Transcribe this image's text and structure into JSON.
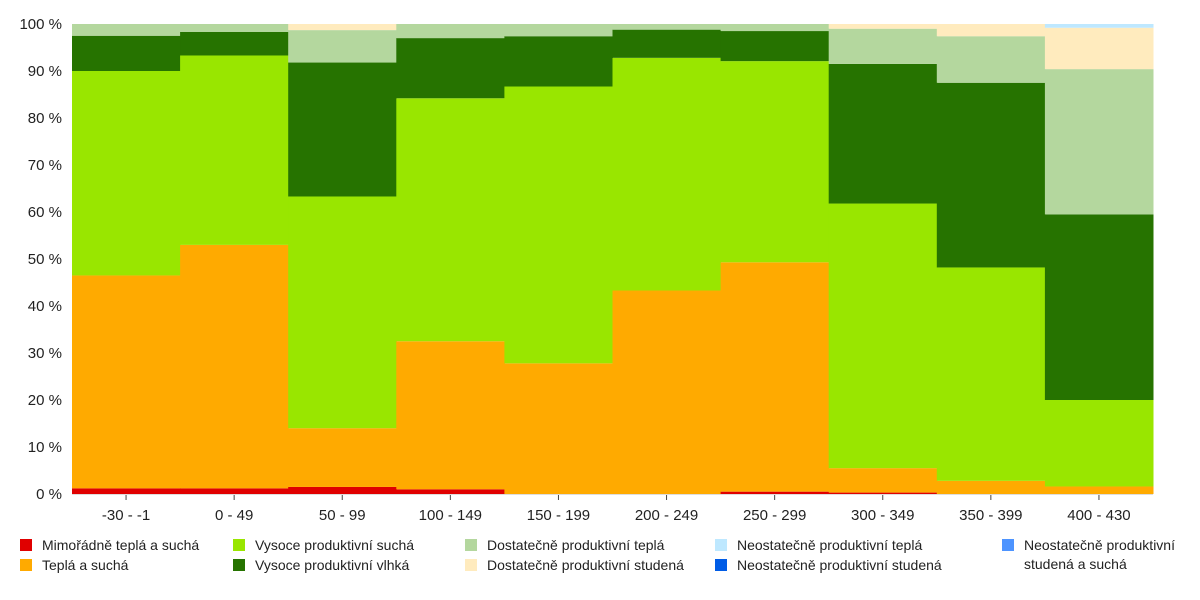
{
  "chart_data": {
    "type": "bar",
    "stacked": true,
    "normalized": true,
    "title": "",
    "xlabel": "",
    "ylabel": "",
    "ylim": [
      0,
      100
    ],
    "y_ticks": [
      "0 %",
      "10 %",
      "20 %",
      "30 %",
      "40 %",
      "50 %",
      "60 %",
      "70 %",
      "80 %",
      "90 %",
      "100 %"
    ],
    "grid": false,
    "legend_position": "bottom",
    "categories": [
      "-30 - -1",
      "0 - 49",
      "50 - 99",
      "100 - 149",
      "150 - 199",
      "200 - 249",
      "250 - 299",
      "300 - 349",
      "350 - 399",
      "400 - 430"
    ],
    "series": [
      {
        "name": "Mimořádně teplá a suchá",
        "color": "#e00000",
        "values": [
          1.2,
          1.2,
          1.5,
          1.0,
          0.0,
          0.0,
          0.5,
          0.3,
          0.0,
          0.0
        ]
      },
      {
        "name": "Teplá a suchá",
        "color": "#ffaa00",
        "values": [
          45.3,
          51.8,
          12.5,
          31.5,
          27.8,
          43.3,
          48.8,
          5.2,
          2.8,
          1.6
        ]
      },
      {
        "name": "Vysoce produktivní suchá",
        "color": "#99e600",
        "values": [
          43.5,
          40.3,
          49.3,
          51.7,
          58.9,
          49.5,
          42.8,
          56.3,
          45.4,
          18.4
        ]
      },
      {
        "name": "Vysoce produktivní vlhká",
        "color": "#267300",
        "values": [
          7.5,
          5.0,
          28.5,
          12.8,
          10.7,
          6.0,
          6.4,
          29.7,
          39.3,
          39.5
        ]
      },
      {
        "name": "Dostatečně produktivní teplá",
        "color": "#b4d79e",
        "values": [
          2.5,
          1.7,
          6.9,
          3.0,
          2.6,
          1.2,
          1.5,
          7.5,
          9.9,
          30.9
        ]
      },
      {
        "name": "Dostatečně produktivní studená",
        "color": "#ffebbe",
        "values": [
          0.0,
          0.0,
          1.3,
          0.0,
          0.0,
          0.0,
          0.0,
          1.0,
          2.6,
          8.8
        ]
      },
      {
        "name": "Neostatečně produktivní teplá",
        "color": "#bee8ff",
        "values": [
          0.0,
          0.0,
          0.0,
          0.0,
          0.0,
          0.0,
          0.0,
          0.0,
          0.0,
          0.8
        ]
      },
      {
        "name": "Neostatečně produktivní studená",
        "color": "#005ce6",
        "values": [
          0.0,
          0.0,
          0.0,
          0.0,
          0.0,
          0.0,
          0.0,
          0.0,
          0.0,
          0.0
        ]
      },
      {
        "name": "Neostatečně produktivní studená a suchá",
        "color": "#4d94ff",
        "values": [
          0.0,
          0.0,
          0.0,
          0.0,
          0.0,
          0.0,
          0.0,
          0.0,
          0.0,
          0.0
        ]
      }
    ]
  },
  "legend": {
    "items": [
      {
        "label": "Mimořádně teplá a suchá",
        "color": "#e00000"
      },
      {
        "label": "Teplá a suchá",
        "color": "#ffaa00"
      },
      {
        "label": "Vysoce produktivní suchá",
        "color": "#99e600"
      },
      {
        "label": "Vysoce produktivní vlhká",
        "color": "#267300"
      },
      {
        "label": "Dostatečně produktivní teplá",
        "color": "#b4d79e"
      },
      {
        "label": "Dostatečně produktivní studená",
        "color": "#ffebbe"
      },
      {
        "label": "Neostatečně produktivní teplá",
        "color": "#bee8ff"
      },
      {
        "label": "Neostatečně produktivní studená",
        "color": "#005ce6"
      },
      {
        "label": "Neostatečně produktivní studená a suchá",
        "color": "#4d94ff"
      }
    ]
  }
}
